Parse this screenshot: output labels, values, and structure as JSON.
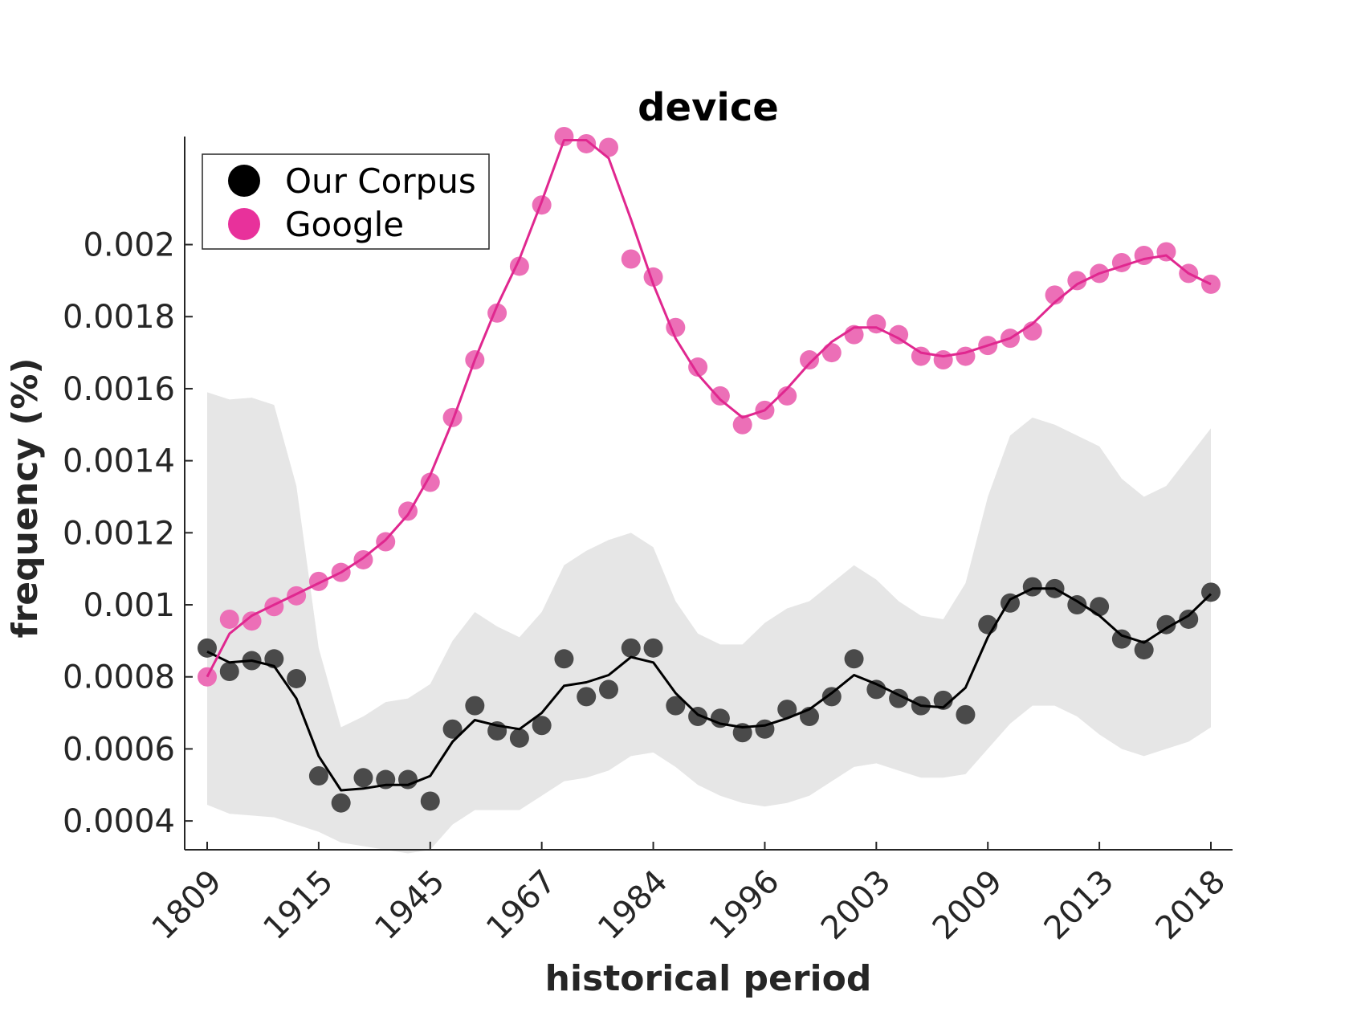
{
  "chart_data": {
    "type": "line",
    "title": "device",
    "xlabel": "historical period",
    "ylabel": "frequency (%)",
    "ylim": [
      0.00032,
      0.0023
    ],
    "y_ticks": [
      "0.0004",
      "0.0006",
      "0.0008",
      "0.001",
      "0.0012",
      "0.0014",
      "0.0016",
      "0.0018",
      "0.002"
    ],
    "y_tick_values": [
      0.0004,
      0.0006,
      0.0008,
      0.001,
      0.0012,
      0.0014,
      0.0016,
      0.0018,
      0.002
    ],
    "x_ticks": [
      "1809",
      "1915",
      "1945",
      "1967",
      "1984",
      "1996",
      "2003",
      "2009",
      "2013",
      "2018"
    ],
    "x_tick_positions": [
      1,
      6,
      11,
      16,
      21,
      26,
      31,
      36,
      41,
      46
    ],
    "xlim": [
      0,
      47
    ],
    "grid": false,
    "legend_position": "top-left",
    "series": [
      {
        "name": "Our Corpus",
        "color": "#4a4a4a",
        "line_color": "#000000",
        "x": [
          1,
          2,
          3,
          4,
          5,
          6,
          7,
          8,
          9,
          10,
          11,
          12,
          13,
          14,
          15,
          16,
          17,
          18,
          19,
          20,
          21,
          22,
          23,
          24,
          25,
          26,
          27,
          28,
          29,
          30,
          31,
          32,
          33,
          34,
          35,
          36,
          37,
          38,
          39,
          40,
          41,
          42,
          43,
          44,
          45,
          46
        ],
        "values": [
          0.00088,
          0.000815,
          0.000845,
          0.00085,
          0.000795,
          0.000525,
          0.00045,
          0.00052,
          0.000515,
          0.000515,
          0.000455,
          0.000655,
          0.00072,
          0.00065,
          0.00063,
          0.000665,
          0.00085,
          0.000745,
          0.000765,
          0.00088,
          0.00088,
          0.00072,
          0.00069,
          0.000685,
          0.000645,
          0.000655,
          0.00071,
          0.00069,
          0.000745,
          0.00085,
          0.000765,
          0.00074,
          0.00072,
          0.000735,
          0.000695,
          0.000945,
          0.001005,
          0.00105,
          0.001045,
          0.001,
          0.000995,
          0.000905,
          0.000875,
          0.000945,
          0.00096,
          0.001035
        ],
        "fit": [
          0.00087,
          0.00084,
          0.000845,
          0.00083,
          0.00074,
          0.00058,
          0.000485,
          0.00049,
          0.0005,
          0.0005,
          0.000525,
          0.00062,
          0.00068,
          0.000665,
          0.000655,
          0.0007,
          0.000775,
          0.000785,
          0.000805,
          0.000855,
          0.00084,
          0.000755,
          0.000695,
          0.00067,
          0.00066,
          0.000665,
          0.000685,
          0.00071,
          0.000755,
          0.000805,
          0.00078,
          0.00075,
          0.00072,
          0.000715,
          0.00077,
          0.00091,
          0.001015,
          0.001045,
          0.001045,
          0.00101,
          0.00097,
          0.000915,
          0.000895,
          0.000935,
          0.00097,
          0.00103
        ],
        "band_upper": [
          0.00159,
          0.00157,
          0.001575,
          0.001555,
          0.00133,
          0.00088,
          0.00066,
          0.00069,
          0.00073,
          0.00074,
          0.00078,
          0.0009,
          0.00098,
          0.00094,
          0.00091,
          0.00098,
          0.00111,
          0.00115,
          0.00118,
          0.0012,
          0.00116,
          0.00101,
          0.00092,
          0.00089,
          0.00089,
          0.00095,
          0.00099,
          0.00101,
          0.00106,
          0.00111,
          0.00107,
          0.00101,
          0.00097,
          0.00096,
          0.00106,
          0.0013,
          0.00147,
          0.00152,
          0.0015,
          0.00147,
          0.00144,
          0.00135,
          0.0013,
          0.00133,
          0.00141,
          0.00149
        ],
        "band_lower": [
          0.000445,
          0.00042,
          0.000415,
          0.00041,
          0.00039,
          0.00037,
          0.00034,
          0.00033,
          0.00032,
          0.00031,
          0.00032,
          0.00039,
          0.00043,
          0.00043,
          0.00043,
          0.00047,
          0.00051,
          0.00052,
          0.00054,
          0.00058,
          0.00059,
          0.00055,
          0.0005,
          0.00047,
          0.00045,
          0.00044,
          0.00045,
          0.00047,
          0.00051,
          0.00055,
          0.00056,
          0.00054,
          0.00052,
          0.00052,
          0.00053,
          0.0006,
          0.00067,
          0.00072,
          0.00072,
          0.00069,
          0.00064,
          0.0006,
          0.00058,
          0.0006,
          0.00062,
          0.00066
        ]
      },
      {
        "name": "Google",
        "color": "#ec6fb7",
        "line_color": "#e0278f",
        "x": [
          1,
          2,
          3,
          4,
          5,
          6,
          7,
          8,
          9,
          10,
          11,
          12,
          13,
          14,
          15,
          16,
          17,
          18,
          19,
          20,
          21,
          22,
          23,
          24,
          25,
          26,
          27,
          28,
          29,
          30,
          31,
          32,
          33,
          34,
          35,
          36,
          37,
          38,
          39,
          40,
          41,
          42,
          43,
          44,
          45,
          46
        ],
        "values": [
          0.0008,
          0.00096,
          0.000955,
          0.000995,
          0.001025,
          0.001065,
          0.00109,
          0.001125,
          0.001175,
          0.00126,
          0.00134,
          0.00152,
          0.00168,
          0.00181,
          0.00194,
          0.00211,
          0.0023,
          0.00228,
          0.00227,
          0.00196,
          0.00191,
          0.00177,
          0.00166,
          0.00158,
          0.0015,
          0.00154,
          0.00158,
          0.00168,
          0.0017,
          0.00175,
          0.00178,
          0.00175,
          0.00169,
          0.00168,
          0.00169,
          0.00172,
          0.00174,
          0.00176,
          0.00186,
          0.0019,
          0.00192,
          0.00195,
          0.00197,
          0.00198,
          0.00192,
          0.00189
        ],
        "fit": [
          0.0008,
          0.00092,
          0.00097,
          0.001,
          0.00103,
          0.00106,
          0.00109,
          0.00113,
          0.00118,
          0.00125,
          0.00136,
          0.00151,
          0.00168,
          0.00183,
          0.00196,
          0.00212,
          0.00229,
          0.00229,
          0.00224,
          0.00207,
          0.00189,
          0.00174,
          0.00164,
          0.00157,
          0.00152,
          0.00154,
          0.0016,
          0.00167,
          0.00173,
          0.00177,
          0.00177,
          0.00174,
          0.0017,
          0.00169,
          0.0017,
          0.00172,
          0.00174,
          0.00178,
          0.00184,
          0.00189,
          0.00192,
          0.00194,
          0.00196,
          0.00197,
          0.00192,
          0.00189
        ]
      }
    ]
  }
}
